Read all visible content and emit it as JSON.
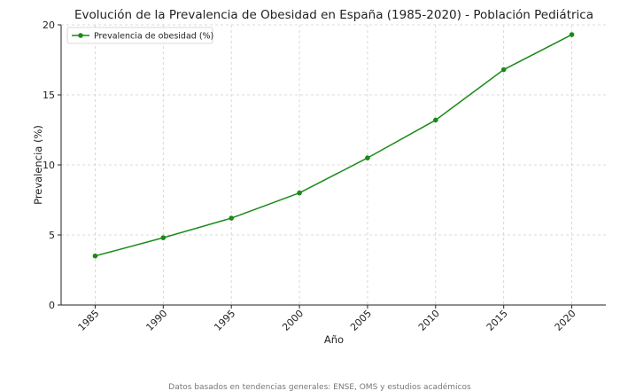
{
  "chart_data": {
    "type": "line",
    "title": "Evolución de la Prevalencia de Obesidad en España (1985-2020) - Población Pediátrica",
    "xlabel": "Año",
    "ylabel": "Prevalencia (%)",
    "x": [
      1985,
      1990,
      1995,
      2000,
      2005,
      2010,
      2015,
      2020
    ],
    "series": [
      {
        "name": "Prevalencia de obesidad (%)",
        "color": "#1a8a1a",
        "marker": "circle",
        "values": [
          3.5,
          4.8,
          6.2,
          8.0,
          10.5,
          13.2,
          16.8,
          19.3
        ]
      }
    ],
    "xticks": [
      "1985",
      "1990",
      "1995",
      "2000",
      "2005",
      "2010",
      "2015",
      "2020"
    ],
    "yticks": [
      "0",
      "5",
      "10",
      "15",
      "20"
    ],
    "xlim": [
      1982.5,
      2022.5
    ],
    "ylim": [
      0,
      20
    ],
    "grid": true,
    "grid_style": "dashed",
    "legend_position": "top-left",
    "footnote": "Datos basados en tendencias generales: ENSE, OMS y estudios académicos"
  }
}
